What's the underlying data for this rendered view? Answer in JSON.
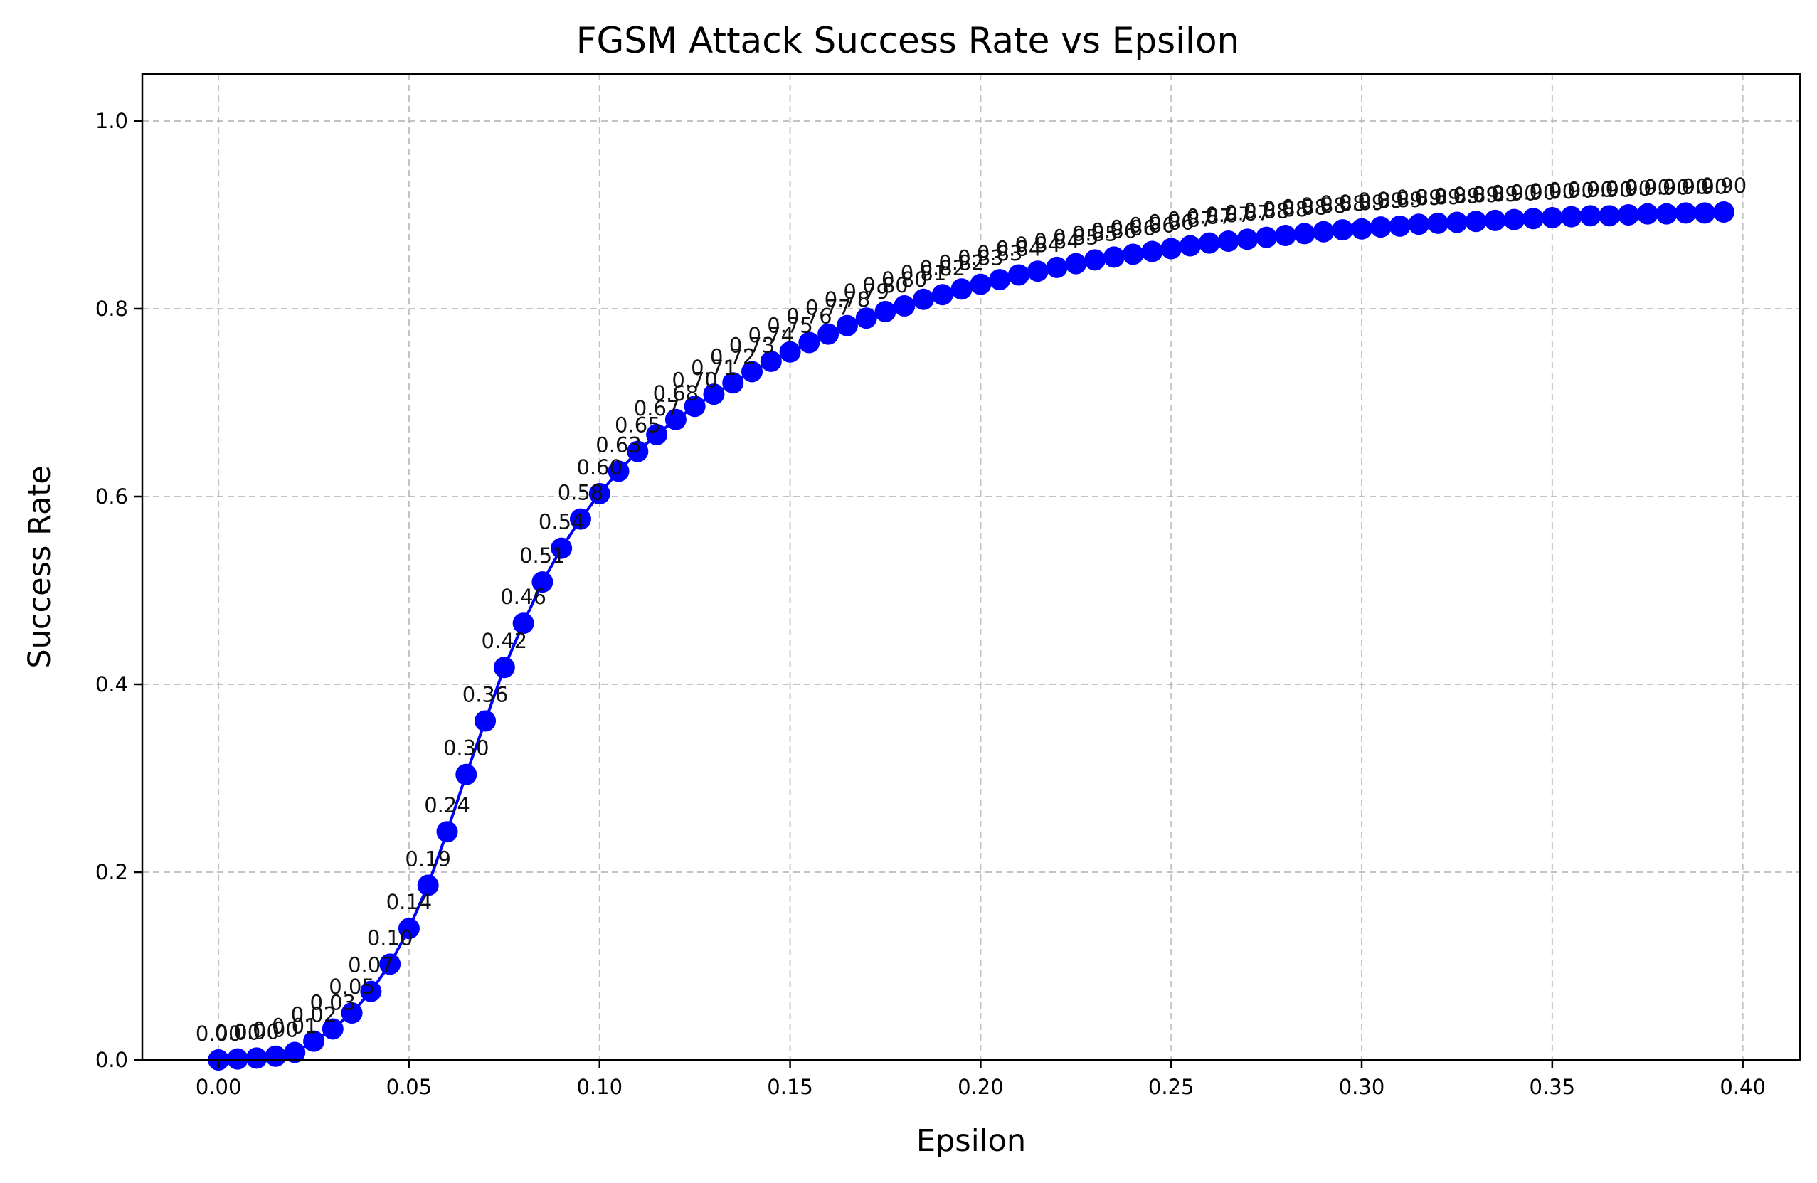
{
  "chart_data": {
    "type": "line",
    "title": "FGSM Attack Success Rate vs Epsilon",
    "xlabel": "Epsilon",
    "ylabel": "Success Rate",
    "xlim": [
      -0.02,
      0.415
    ],
    "ylim": [
      0.0,
      1.05
    ],
    "x_ticks": [
      "0.00",
      "0.05",
      "0.10",
      "0.15",
      "0.20",
      "0.25",
      "0.30",
      "0.35",
      "0.40"
    ],
    "x_tick_values": [
      0.0,
      0.05,
      0.1,
      0.15,
      0.2,
      0.25,
      0.3,
      0.35,
      0.4
    ],
    "y_ticks": [
      "0.0",
      "0.2",
      "0.4",
      "0.6",
      "0.8",
      "1.0"
    ],
    "y_tick_values": [
      0.0,
      0.2,
      0.4,
      0.6,
      0.8,
      1.0
    ],
    "grid": true,
    "color": "#0000ff",
    "x": [
      0.0,
      0.005,
      0.01,
      0.015,
      0.02,
      0.025,
      0.03,
      0.035,
      0.04,
      0.045,
      0.05,
      0.055,
      0.06,
      0.065,
      0.07,
      0.075,
      0.08,
      0.085,
      0.09,
      0.095,
      0.1,
      0.105,
      0.11,
      0.115,
      0.12,
      0.125,
      0.13,
      0.135,
      0.14,
      0.145,
      0.15,
      0.155,
      0.16,
      0.165,
      0.17,
      0.175,
      0.18,
      0.185,
      0.19,
      0.195,
      0.2,
      0.205,
      0.21,
      0.215,
      0.22,
      0.225,
      0.23,
      0.235,
      0.24,
      0.245,
      0.25,
      0.255,
      0.26,
      0.265,
      0.27,
      0.275,
      0.28,
      0.285,
      0.29,
      0.295,
      0.3,
      0.305,
      0.31,
      0.315,
      0.32,
      0.325,
      0.33,
      0.335,
      0.34,
      0.345,
      0.35,
      0.355,
      0.36,
      0.365,
      0.37,
      0.375,
      0.38,
      0.385,
      0.39,
      0.395
    ],
    "y": [
      0.0,
      0.001,
      0.002,
      0.004,
      0.008,
      0.02,
      0.033,
      0.05,
      0.073,
      0.102,
      0.14,
      0.186,
      0.243,
      0.304,
      0.361,
      0.418,
      0.465,
      0.509,
      0.545,
      0.576,
      0.603,
      0.627,
      0.648,
      0.666,
      0.682,
      0.696,
      0.709,
      0.721,
      0.733,
      0.744,
      0.754,
      0.764,
      0.773,
      0.782,
      0.79,
      0.797,
      0.803,
      0.81,
      0.815,
      0.821,
      0.826,
      0.831,
      0.836,
      0.84,
      0.844,
      0.848,
      0.852,
      0.855,
      0.858,
      0.861,
      0.864,
      0.867,
      0.87,
      0.872,
      0.874,
      0.876,
      0.878,
      0.88,
      0.882,
      0.884,
      0.885,
      0.887,
      0.888,
      0.89,
      0.891,
      0.892,
      0.893,
      0.894,
      0.895,
      0.896,
      0.897,
      0.898,
      0.899,
      0.899,
      0.9,
      0.901,
      0.901,
      0.902,
      0.902,
      0.903
    ],
    "point_labels": [
      "0.00",
      "0.00",
      "0.00",
      "0.00",
      "0.01",
      "0.02",
      "0.03",
      "0.05",
      "0.07",
      "0.10",
      "0.14",
      "0.19",
      "0.24",
      "0.30",
      "0.36",
      "0.42",
      "0.46",
      "0.51",
      "0.54",
      "0.58",
      "0.60",
      "0.63",
      "0.65",
      "0.67",
      "0.68",
      "0.70",
      "0.71",
      "0.72",
      "0.73",
      "0.74",
      "0.75",
      "0.76",
      "0.77",
      "0.78",
      "0.79",
      "0.80",
      "0.80",
      "0.81",
      "0.82",
      "0.82",
      "0.83",
      "0.83",
      "0.84",
      "0.84",
      "0.84",
      "0.85",
      "0.85",
      "0.86",
      "0.86",
      "0.86",
      "0.86",
      "0.87",
      "0.87",
      "0.87",
      "0.87",
      "0.88",
      "0.88",
      "0.88",
      "0.88",
      "0.88",
      "0.89",
      "0.89",
      "0.89",
      "0.89",
      "0.89",
      "0.89",
      "0.89",
      "0.89",
      "0.90",
      "0.90",
      "0.90",
      "0.90",
      "0.90",
      "0.90",
      "0.90",
      "0.90",
      "0.90",
      "0.90",
      "0.90",
      "0.90"
    ]
  }
}
